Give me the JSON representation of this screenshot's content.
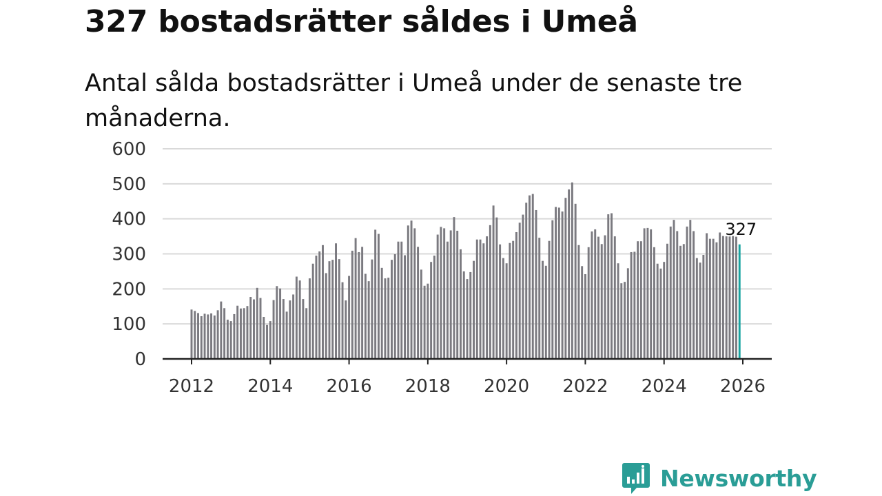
{
  "title": "327 bostadsrätter såldes i Umeå",
  "subtitle": "Antal sålda bostadsrätter i Umeå under de senaste tre månaderna.",
  "brand": {
    "name": "Newsworthy",
    "icon": "bar-chart-speech-bubble-icon"
  },
  "colors": {
    "bar": "#7b7a80",
    "highlight": "#17a3a0",
    "grid": "#d9d9d9",
    "axis": "#222222",
    "text": "#111111",
    "brand": "#2a9d96"
  },
  "chart_data": {
    "type": "bar",
    "title": "327 bostadsrätter såldes i Umeå",
    "xlabel": "",
    "ylabel": "",
    "ylim": [
      0,
      600
    ],
    "yticks": [
      0,
      100,
      200,
      300,
      400,
      500,
      600
    ],
    "xlim": [
      2012,
      2026
    ],
    "xticks": [
      2012,
      2014,
      2016,
      2018,
      2020,
      2022,
      2024,
      2026
    ],
    "grid": true,
    "start_year": 2012,
    "start_month": 1,
    "highlight_label": "327",
    "values": [
      141,
      137,
      131,
      122,
      129,
      127,
      130,
      124,
      139,
      164,
      145,
      112,
      108,
      128,
      152,
      144,
      145,
      151,
      177,
      170,
      203,
      174,
      120,
      97,
      108,
      168,
      208,
      201,
      171,
      135,
      167,
      184,
      235,
      224,
      171,
      145,
      230,
      272,
      295,
      307,
      325,
      245,
      279,
      283,
      330,
      285,
      219,
      167,
      237,
      309,
      345,
      305,
      320,
      243,
      222,
      284,
      369,
      357,
      260,
      230,
      232,
      283,
      299,
      335,
      335,
      296,
      381,
      395,
      373,
      320,
      255,
      209,
      215,
      277,
      295,
      355,
      377,
      373,
      335,
      367,
      405,
      366,
      313,
      250,
      228,
      248,
      280,
      341,
      341,
      330,
      350,
      382,
      438,
      404,
      327,
      288,
      273,
      331,
      337,
      362,
      389,
      412,
      446,
      467,
      471,
      425,
      346,
      280,
      266,
      337,
      396,
      434,
      432,
      421,
      460,
      484,
      504,
      443,
      325,
      265,
      242,
      319,
      364,
      370,
      349,
      328,
      353,
      413,
      416,
      350,
      273,
      216,
      220,
      259,
      305,
      306,
      336,
      336,
      373,
      374,
      370,
      319,
      272,
      258,
      277,
      329,
      378,
      397,
      365,
      323,
      328,
      378,
      397,
      365,
      288,
      275,
      297,
      359,
      343,
      343,
      333,
      361,
      351,
      350,
      350,
      351,
      349,
      327
    ]
  }
}
